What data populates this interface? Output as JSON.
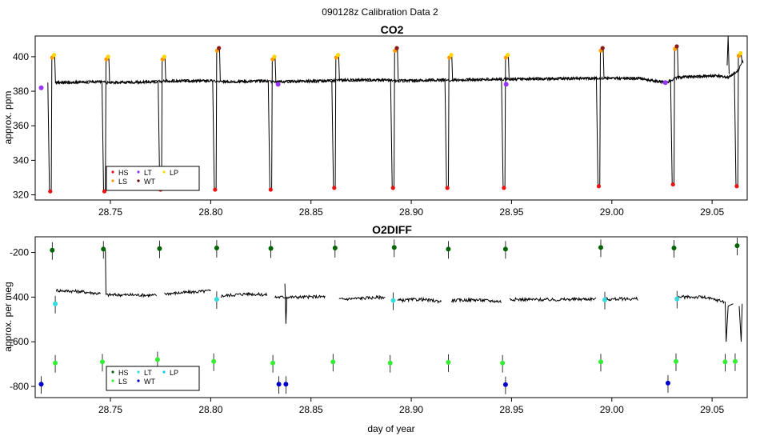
{
  "title": "090128z   Calibration Data 2",
  "xlabel": "day of year",
  "colors": {
    "HS": "#8b1a1a",
    "LS": "#ff9900",
    "LT": "#9933ff",
    "WT": "#6b0000",
    "LP": "#ffd700",
    "HS_red": "#ee1111",
    "o2_LS": "#33ee33",
    "o2_LT": "#33dddd",
    "o2_HS": "#006400",
    "o2_WT": "#0000cc",
    "o2_LP": "#00ccff"
  },
  "chart_data": [
    {
      "type": "line",
      "title": "CO2",
      "xlabel": "",
      "ylabel": "approx. ppm",
      "xlim": [
        28.7125,
        29.0675
      ],
      "ylim": [
        317,
        412
      ],
      "x_ticks": [
        "28.75",
        "28.80",
        "28.85",
        "28.90",
        "28.95",
        "29.00",
        "29.05"
      ],
      "y_ticks": [
        "320",
        "340",
        "360",
        "380",
        "400"
      ],
      "legend": {
        "placement": "bottom-left",
        "entries": [
          "HS",
          "LS",
          "LT",
          "WT",
          "LP"
        ]
      },
      "baseline": {
        "x": [
          28.722,
          28.745,
          28.748,
          28.773,
          28.777,
          28.8,
          28.805,
          28.828,
          28.832,
          28.86,
          28.864,
          28.887,
          28.893,
          28.915,
          28.92,
          28.945,
          28.948,
          28.992,
          28.996,
          29.013,
          29.027,
          29.033,
          29.052,
          29.058,
          29.063,
          29.065
        ],
        "y": [
          385,
          385.5,
          385,
          385.5,
          386,
          386,
          385.5,
          386,
          385.5,
          386,
          386.5,
          386.5,
          386,
          386.5,
          386.5,
          387,
          387,
          387.5,
          387.5,
          387.5,
          385,
          388,
          389,
          388,
          392,
          397
        ]
      },
      "cycles": [
        {
          "x": 28.7196,
          "low": 322,
          "high": 401
        },
        {
          "x": 28.7466,
          "low": 322,
          "high": 400
        },
        {
          "x": 28.7746,
          "low": 323,
          "high": 400
        },
        {
          "x": 28.8018,
          "low": 323,
          "high": 405
        },
        {
          "x": 28.8295,
          "low": 323,
          "high": 400
        },
        {
          "x": 28.8612,
          "low": 324,
          "high": 401
        },
        {
          "x": 28.8905,
          "low": 324,
          "high": 405
        },
        {
          "x": 28.9176,
          "low": 324,
          "high": 401
        },
        {
          "x": 28.9458,
          "low": 324,
          "high": 401
        },
        {
          "x": 28.9931,
          "low": 325,
          "high": 405
        },
        {
          "x": 29.0301,
          "low": 326,
          "high": 406
        },
        {
          "x": 29.0619,
          "low": 325,
          "high": 402
        }
      ],
      "points": [
        {
          "series": "LT",
          "x": 28.7155,
          "y": 382
        },
        {
          "series": "LT",
          "x": 28.8336,
          "y": 384
        },
        {
          "series": "LT",
          "x": 28.9473,
          "y": 384
        },
        {
          "series": "LT",
          "x": 29.0267,
          "y": 385
        }
      ]
    },
    {
      "type": "line",
      "title": "O2DIFF",
      "xlabel": "day of year",
      "ylabel": "approx. per meg",
      "xlim": [
        28.7125,
        29.0675
      ],
      "ylim": [
        -850,
        -130
      ],
      "x_ticks": [
        "28.75",
        "28.80",
        "28.85",
        "28.90",
        "28.95",
        "29.00",
        "29.05"
      ],
      "y_ticks": [
        "-800",
        "-600",
        "-400",
        "-200"
      ],
      "legend": {
        "placement": "bottom-left",
        "entries": [
          "HS",
          "LS",
          "LT",
          "WT",
          "LP"
        ]
      },
      "baseline_segments": [
        {
          "x": [
            28.723,
            28.735,
            28.745
          ],
          "y": [
            -370,
            -375,
            -385
          ]
        },
        {
          "x": [
            28.748,
            28.76,
            28.773
          ],
          "y": [
            -390,
            -390,
            -392
          ]
        },
        {
          "x": [
            28.777,
            28.79,
            28.8
          ],
          "y": [
            -385,
            -378,
            -372
          ]
        },
        {
          "x": [
            28.805,
            28.818,
            28.828
          ],
          "y": [
            -395,
            -385,
            -390
          ]
        },
        {
          "x": [
            28.832,
            28.845,
            28.857
          ],
          "y": [
            -400,
            -400,
            -398
          ]
        },
        {
          "x": [
            28.864,
            28.875,
            28.887
          ],
          "y": [
            -410,
            -405,
            -400
          ]
        },
        {
          "x": [
            28.893,
            28.905,
            28.915
          ],
          "y": [
            -415,
            -410,
            -420
          ]
        },
        {
          "x": [
            28.92,
            28.932,
            28.945
          ],
          "y": [
            -415,
            -412,
            -420
          ]
        },
        {
          "x": [
            28.949,
            28.97,
            28.992
          ],
          "y": [
            -410,
            -412,
            -408
          ]
        },
        {
          "x": [
            28.996,
            29.005,
            29.013
          ],
          "y": [
            -410,
            -408,
            -408
          ]
        },
        {
          "x": [
            29.033,
            29.045,
            29.056
          ],
          "y": [
            -400,
            -400,
            -420
          ]
        }
      ],
      "points": [
        {
          "series": "HS",
          "x": 28.721,
          "y": -190
        },
        {
          "series": "HS",
          "x": 28.7465,
          "y": -185
        },
        {
          "series": "HS",
          "x": 28.7745,
          "y": -183
        },
        {
          "series": "HS",
          "x": 28.803,
          "y": -180
        },
        {
          "series": "HS",
          "x": 28.83,
          "y": -182
        },
        {
          "series": "HS",
          "x": 28.862,
          "y": -180
        },
        {
          "series": "HS",
          "x": 28.8915,
          "y": -178
        },
        {
          "series": "HS",
          "x": 28.9185,
          "y": -185
        },
        {
          "series": "HS",
          "x": 28.947,
          "y": -185
        },
        {
          "series": "HS",
          "x": 28.9945,
          "y": -178
        },
        {
          "series": "HS",
          "x": 29.031,
          "y": -180
        },
        {
          "series": "HS",
          "x": 29.0625,
          "y": -170
        },
        {
          "series": "LS",
          "x": 28.7225,
          "y": -695
        },
        {
          "series": "LS",
          "x": 28.746,
          "y": -690
        },
        {
          "series": "LS",
          "x": 28.7735,
          "y": -680
        },
        {
          "series": "LS",
          "x": 28.8015,
          "y": -688
        },
        {
          "series": "LS",
          "x": 28.831,
          "y": -695
        },
        {
          "series": "LS",
          "x": 28.861,
          "y": -690
        },
        {
          "series": "LS",
          "x": 28.8895,
          "y": -695
        },
        {
          "series": "LS",
          "x": 28.9185,
          "y": -692
        },
        {
          "series": "LS",
          "x": 28.9455,
          "y": -695
        },
        {
          "series": "LS",
          "x": 28.9945,
          "y": -690
        },
        {
          "series": "LS",
          "x": 29.032,
          "y": -688
        },
        {
          "series": "LS",
          "x": 29.0565,
          "y": -690
        },
        {
          "series": "LS",
          "x": 29.0615,
          "y": -688
        },
        {
          "series": "LT",
          "x": 28.7225,
          "y": -430
        },
        {
          "series": "LT",
          "x": 28.803,
          "y": -410
        },
        {
          "series": "LT",
          "x": 28.891,
          "y": -415
        },
        {
          "series": "LT",
          "x": 28.9965,
          "y": -412
        },
        {
          "series": "LT",
          "x": 29.0325,
          "y": -408
        },
        {
          "series": "WT",
          "x": 28.7155,
          "y": -790
        },
        {
          "series": "WT",
          "x": 28.834,
          "y": -790
        },
        {
          "series": "WT",
          "x": 28.8375,
          "y": -790
        },
        {
          "series": "WT",
          "x": 28.947,
          "y": -792
        },
        {
          "series": "WT",
          "x": 29.028,
          "y": -785
        }
      ]
    }
  ]
}
